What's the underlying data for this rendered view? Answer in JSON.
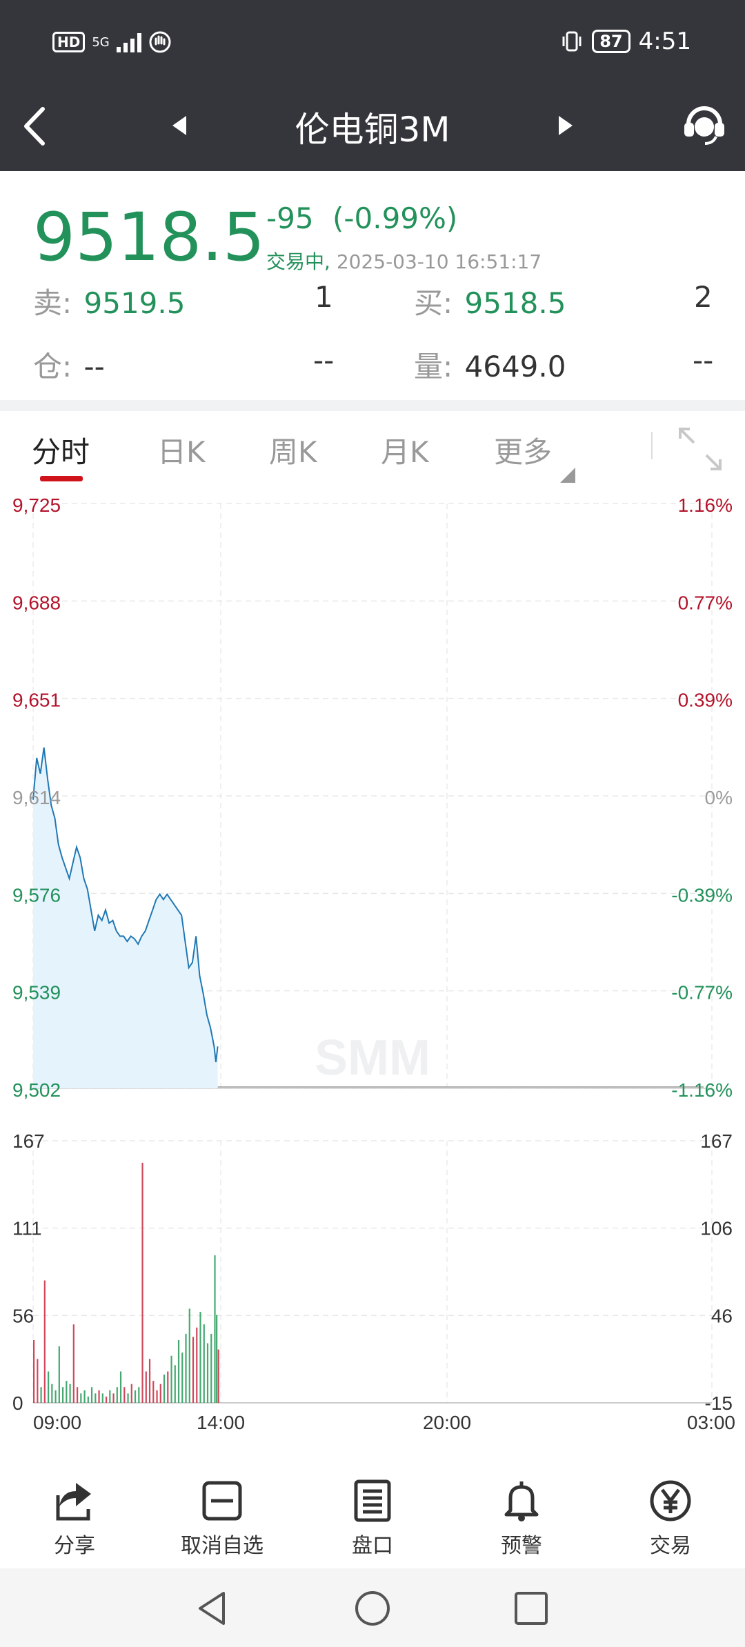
{
  "status_bar": {
    "hd": "HD",
    "network": "5G",
    "battery": "87",
    "time": "4:51"
  },
  "header": {
    "title": "伦电铜3M"
  },
  "quote": {
    "price": "9518.5",
    "change": "-95",
    "change_pct": "(-0.99%)",
    "trade_status": "交易中,",
    "datetime": "2025-03-10 16:51:17",
    "sell_label": "卖:",
    "sell_price": "9519.5",
    "sell_qty": "1",
    "buy_label": "买:",
    "buy_price": "9518.5",
    "buy_qty": "2",
    "position_label": "仓:",
    "position_value": "--",
    "position_change": "--",
    "volume_label": "量:",
    "volume_value": "4649.0",
    "volume_change": "--"
  },
  "tabs": [
    "分时",
    "日K",
    "周K",
    "月K",
    "更多"
  ],
  "colors": {
    "green": "#22915a",
    "red": "#b3122a",
    "line": "#1f78b4",
    "header": "#34363b"
  },
  "chart_data": {
    "type": "line",
    "price_axis": {
      "ticks": [
        "9,725",
        "9,688",
        "9,651",
        "9,614",
        "9,576",
        "9,539",
        "9,502"
      ],
      "pct_ticks": [
        "1.16%",
        "0.77%",
        "0.39%",
        "0%",
        "-0.39%",
        "-0.77%",
        "-1.16%"
      ],
      "ylim": [
        9502,
        9725
      ],
      "reference": 9614
    },
    "volume_axis": {
      "left_ticks": [
        "167",
        "111",
        "56",
        "0"
      ],
      "right_ticks": [
        "167",
        "106",
        "46",
        "-15"
      ],
      "ylim": [
        0,
        167
      ]
    },
    "x_ticks": [
      "09:00",
      "14:00",
      "20:00",
      "03:00"
    ],
    "watermark": "SMM",
    "price_series": [
      [
        0,
        9612
      ],
      [
        2,
        9628
      ],
      [
        4,
        9622
      ],
      [
        6,
        9632
      ],
      [
        8,
        9620
      ],
      [
        10,
        9610
      ],
      [
        12,
        9605
      ],
      [
        14,
        9595
      ],
      [
        16,
        9590
      ],
      [
        18,
        9586
      ],
      [
        20,
        9582
      ],
      [
        22,
        9588
      ],
      [
        24,
        9594
      ],
      [
        26,
        9590
      ],
      [
        28,
        9582
      ],
      [
        30,
        9578
      ],
      [
        32,
        9570
      ],
      [
        34,
        9562
      ],
      [
        36,
        9568
      ],
      [
        38,
        9566
      ],
      [
        40,
        9570
      ],
      [
        42,
        9565
      ],
      [
        44,
        9566
      ],
      [
        46,
        9562
      ],
      [
        48,
        9560
      ],
      [
        50,
        9560
      ],
      [
        52,
        9558
      ],
      [
        54,
        9560
      ],
      [
        56,
        9559
      ],
      [
        58,
        9557
      ],
      [
        60,
        9560
      ],
      [
        62,
        9562
      ],
      [
        64,
        9566
      ],
      [
        66,
        9570
      ],
      [
        68,
        9574
      ],
      [
        70,
        9576
      ],
      [
        72,
        9574
      ],
      [
        74,
        9576
      ],
      [
        76,
        9574
      ],
      [
        78,
        9572
      ],
      [
        80,
        9570
      ],
      [
        82,
        9568
      ],
      [
        84,
        9558
      ],
      [
        86,
        9548
      ],
      [
        88,
        9550
      ],
      [
        90,
        9560
      ],
      [
        92,
        9545
      ],
      [
        94,
        9538
      ],
      [
        96,
        9530
      ],
      [
        98,
        9525
      ],
      [
        100,
        9518
      ],
      [
        101,
        9512
      ],
      [
        102,
        9518
      ]
    ],
    "volume_series": [
      [
        0,
        40
      ],
      [
        2,
        28
      ],
      [
        4,
        10
      ],
      [
        6,
        78
      ],
      [
        8,
        20
      ],
      [
        10,
        12
      ],
      [
        12,
        8
      ],
      [
        14,
        36
      ],
      [
        16,
        10
      ],
      [
        18,
        14
      ],
      [
        20,
        12
      ],
      [
        22,
        50
      ],
      [
        24,
        10
      ],
      [
        26,
        6
      ],
      [
        28,
        8
      ],
      [
        30,
        4
      ],
      [
        32,
        10
      ],
      [
        34,
        6
      ],
      [
        36,
        8
      ],
      [
        38,
        6
      ],
      [
        40,
        4
      ],
      [
        42,
        8
      ],
      [
        44,
        6
      ],
      [
        46,
        10
      ],
      [
        48,
        20
      ],
      [
        50,
        10
      ],
      [
        52,
        6
      ],
      [
        54,
        12
      ],
      [
        56,
        8
      ],
      [
        58,
        10
      ],
      [
        60,
        153
      ],
      [
        62,
        20
      ],
      [
        64,
        28
      ],
      [
        66,
        14
      ],
      [
        68,
        8
      ],
      [
        70,
        12
      ],
      [
        72,
        18
      ],
      [
        74,
        20
      ],
      [
        76,
        30
      ],
      [
        78,
        24
      ],
      [
        80,
        40
      ],
      [
        82,
        32
      ],
      [
        84,
        44
      ],
      [
        86,
        60
      ],
      [
        88,
        42
      ],
      [
        90,
        48
      ],
      [
        92,
        58
      ],
      [
        94,
        50
      ],
      [
        96,
        38
      ],
      [
        98,
        44
      ],
      [
        100,
        94
      ],
      [
        101,
        56
      ],
      [
        102,
        34
      ]
    ],
    "x_range": [
      0,
      375
    ]
  },
  "bottom_bar": [
    "分享",
    "取消自选",
    "盘口",
    "预警",
    "交易"
  ]
}
